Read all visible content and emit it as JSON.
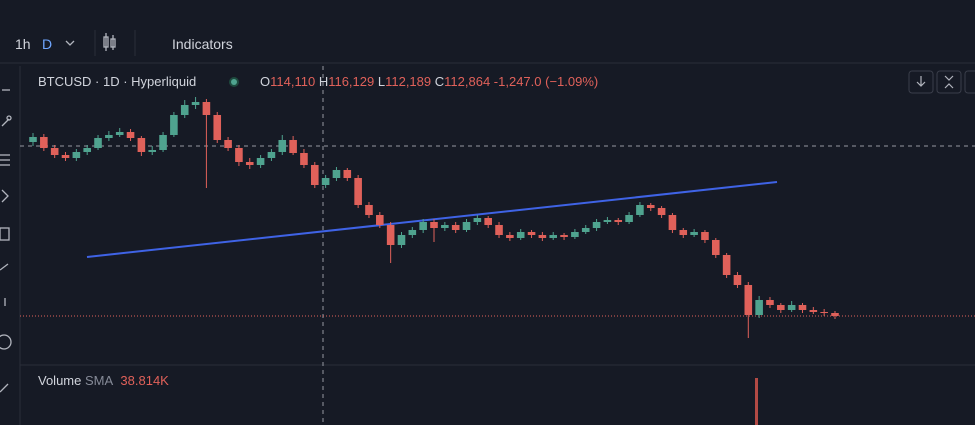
{
  "toolbar": {
    "interval": "1h",
    "period": "D",
    "indicators": "Indicators"
  },
  "legend": {
    "symbol": "BTCUSD · 1D · Hyperliquid",
    "open_label": "O",
    "open": "114,110",
    "high_label": "H",
    "high": "116,129",
    "low_label": "L",
    "low": "112,189",
    "close_label": "C",
    "close": "112,864",
    "change": "-1,247.0 (−1.09%)"
  },
  "volume": {
    "label": "Volume",
    "sma_label": "SMA",
    "sma": "38.814K"
  },
  "chart_data": {
    "type": "candlestick",
    "up_color": "#4fa38f",
    "down_color": "#e0615a",
    "ylim": [
      91600,
      121100
    ],
    "candles": [
      [
        113900,
        114800,
        113500,
        114400
      ],
      [
        114400,
        114700,
        113000,
        113300
      ],
      [
        113300,
        113600,
        112300,
        112600
      ],
      [
        112600,
        112900,
        112000,
        112300
      ],
      [
        112300,
        113200,
        112000,
        112900
      ],
      [
        112900,
        113600,
        112600,
        113300
      ],
      [
        113300,
        114600,
        113100,
        114300
      ],
      [
        114300,
        115000,
        114000,
        114600
      ],
      [
        114600,
        115300,
        114400,
        114900
      ],
      [
        114900,
        115200,
        114000,
        114300
      ],
      [
        114300,
        114500,
        112500,
        112900
      ],
      [
        112900,
        113500,
        112600,
        113100
      ],
      [
        113100,
        114900,
        112900,
        114600
      ],
      [
        114600,
        116900,
        114400,
        116600
      ],
      [
        116600,
        118100,
        116300,
        117600
      ],
      [
        117600,
        118400,
        117200,
        117900
      ],
      [
        117900,
        118200,
        109300,
        116600
      ],
      [
        116600,
        116900,
        113800,
        114100
      ],
      [
        114100,
        114400,
        113000,
        113300
      ],
      [
        113300,
        113600,
        111500,
        111900
      ],
      [
        111900,
        112300,
        111200,
        111600
      ],
      [
        111600,
        112600,
        111300,
        112300
      ],
      [
        112300,
        113200,
        112000,
        112900
      ],
      [
        112900,
        114600,
        112600,
        114100
      ],
      [
        114100,
        114500,
        112600,
        112800
      ],
      [
        112800,
        113200,
        111300,
        111600
      ],
      [
        111600,
        111900,
        109300,
        109600
      ],
      [
        109600,
        110600,
        109300,
        110300
      ],
      [
        110300,
        111400,
        110000,
        111100
      ],
      [
        111100,
        111300,
        110000,
        110300
      ],
      [
        110300,
        110600,
        107300,
        107600
      ],
      [
        107600,
        107900,
        106300,
        106600
      ],
      [
        106600,
        106900,
        105300,
        105600
      ],
      [
        105600,
        105900,
        101800,
        103600
      ],
      [
        103600,
        104900,
        103300,
        104600
      ],
      [
        104600,
        105400,
        104300,
        105100
      ],
      [
        105100,
        106200,
        104800,
        105900
      ],
      [
        105900,
        106200,
        103900,
        105300
      ],
      [
        105300,
        105900,
        105000,
        105600
      ],
      [
        105600,
        105900,
        104800,
        105100
      ],
      [
        105100,
        106200,
        104900,
        105900
      ],
      [
        105900,
        106600,
        105600,
        106300
      ],
      [
        106300,
        106500,
        105300,
        105600
      ],
      [
        105600,
        105900,
        104300,
        104600
      ],
      [
        104600,
        104900,
        104000,
        104300
      ],
      [
        104300,
        105200,
        104100,
        104900
      ],
      [
        104900,
        105100,
        104300,
        104600
      ],
      [
        104600,
        104900,
        104000,
        104300
      ],
      [
        104300,
        104900,
        104100,
        104600
      ],
      [
        104600,
        104800,
        104100,
        104400
      ],
      [
        104400,
        105200,
        104200,
        104900
      ],
      [
        104900,
        105600,
        104700,
        105300
      ],
      [
        105300,
        106200,
        105000,
        105900
      ],
      [
        105900,
        106400,
        105700,
        106100
      ],
      [
        106100,
        106300,
        105600,
        105900
      ],
      [
        105900,
        106900,
        105700,
        106600
      ],
      [
        106600,
        107900,
        106400,
        107600
      ],
      [
        107600,
        107800,
        107000,
        107300
      ],
      [
        107300,
        107500,
        106300,
        106600
      ],
      [
        106600,
        106800,
        104800,
        105100
      ],
      [
        105100,
        105300,
        104300,
        104600
      ],
      [
        104600,
        105200,
        104400,
        104900
      ],
      [
        104900,
        105100,
        103800,
        104100
      ],
      [
        104100,
        104300,
        102300,
        102600
      ],
      [
        102600,
        102800,
        100300,
        100600
      ],
      [
        100600,
        100900,
        99300,
        99600
      ],
      [
        99600,
        99900,
        94300,
        96600
      ],
      [
        96600,
        98500,
        96300,
        98100
      ],
      [
        98100,
        98400,
        97300,
        97600
      ],
      [
        97600,
        97800,
        96800,
        97100
      ],
      [
        97100,
        98000,
        96900,
        97600
      ],
      [
        97600,
        97800,
        96800,
        97100
      ],
      [
        97100,
        97400,
        96700,
        96900
      ],
      [
        96900,
        97200,
        96500,
        96800
      ],
      [
        96800,
        97000,
        96200,
        96500
      ]
    ]
  }
}
